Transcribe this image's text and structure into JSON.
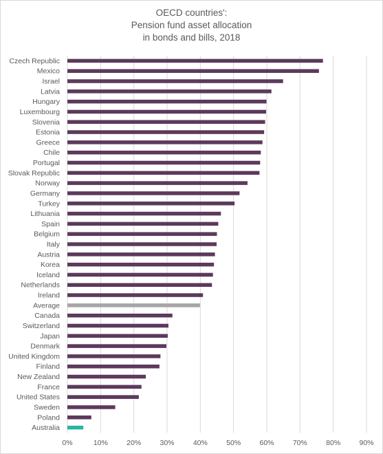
{
  "chart_data": {
    "type": "bar",
    "orientation": "horizontal",
    "title_lines": [
      "OECD countries':",
      "Pension fund asset allocation",
      "in bonds and bills, 2018"
    ],
    "categories": [
      "Czech Republic",
      "Mexico",
      "Israel",
      "Latvia",
      "Hungary",
      "Luxembourg",
      "Slovenia",
      "Estonia",
      "Greece",
      "Chile",
      "Portugal",
      "Slovak Republic",
      "Norway",
      "Germany",
      "Turkey",
      "Lithuania",
      "Spain",
      "Belgium",
      "Italy",
      "Austria",
      "Korea",
      "Iceland",
      "Netherlands",
      "Ireland",
      "Average",
      "Canada",
      "Switzerland",
      "Japan",
      "Denmark",
      "United Kingdom",
      "Finland",
      "New Zealand",
      "France",
      "United States",
      "Sweden",
      "Poland",
      "Australia"
    ],
    "values": [
      76.9,
      75.7,
      64.9,
      61.4,
      59.9,
      59.8,
      59.5,
      59.2,
      58.7,
      58.2,
      58.0,
      57.8,
      54.2,
      51.8,
      50.3,
      46.2,
      45.4,
      45.0,
      44.9,
      44.4,
      44.1,
      43.8,
      43.5,
      40.8,
      39.9,
      31.6,
      30.4,
      30.2,
      29.8,
      28.0,
      27.7,
      23.6,
      22.3,
      21.5,
      14.4,
      7.2,
      4.8
    ],
    "xlim": [
      0,
      90
    ],
    "x_ticks": [
      "0%",
      "10%",
      "20%",
      "30%",
      "40%",
      "50%",
      "60%",
      "70%",
      "80%",
      "90%"
    ],
    "grid": true,
    "colors": {
      "default": "#5c3a5c",
      "Average": "#a6a6a6",
      "Australia": "#2ab3a0",
      "grid": "#d9d9d9",
      "text": "#595959"
    }
  }
}
